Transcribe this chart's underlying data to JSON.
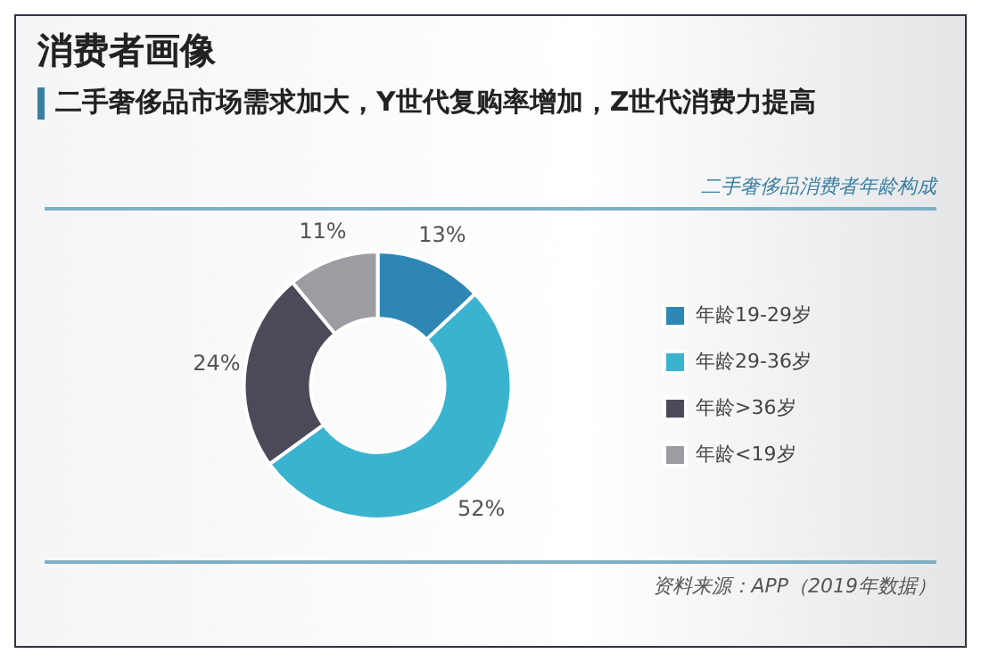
{
  "chart_data": {
    "type": "donut",
    "title": "消费者画像",
    "subtitle": "二手奢侈品市场需求加大，Y世代复购率增加，Z世代消费力提高",
    "annotations": [
      "二手奢侈品消费者年龄构成",
      "资料来源：APP（2019年数据）"
    ],
    "categories": [
      "年龄19-29岁",
      "年龄29-36岁",
      "年龄>36岁",
      "年龄<19岁"
    ],
    "values": [
      13,
      52,
      24,
      11
    ],
    "colors": [
      "#2e86b5",
      "#3ab3cf",
      "#4a4a58",
      "#9c9da3"
    ],
    "value_labels": [
      "13%",
      "52%",
      "24%",
      "11%"
    ],
    "legend": "right"
  }
}
